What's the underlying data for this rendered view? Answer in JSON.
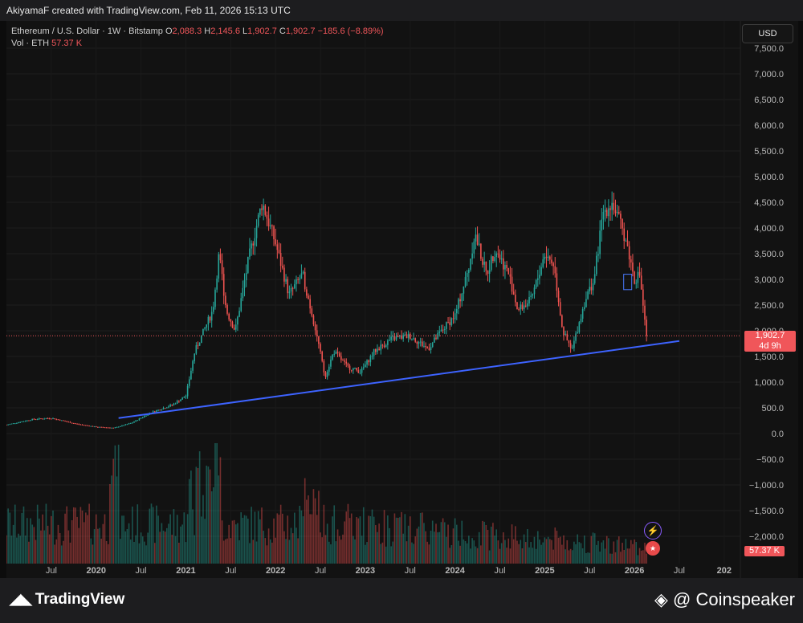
{
  "header": {
    "text": "AkiyamaF created with TradingView.com, Feb 11, 2026 15:13 UTC"
  },
  "legend": {
    "symbol": "Ethereum / U.S. Dollar · 1W · Bitstamp",
    "o_label": "O",
    "o": "2,088.3",
    "h_label": "H",
    "h": "2,145.6",
    "l_label": "L",
    "l": "1,902.7",
    "c_label": "C",
    "c": "1,902.7",
    "change": "−185.6 (−8.89%)",
    "vol_label": "Vol · ETH",
    "vol": "57.37 K"
  },
  "currency_button": "USD",
  "price_tag": {
    "price": "1,902.7",
    "countdown": "4d 9h"
  },
  "volume_tag": "57.37 K",
  "footer": {
    "brand": "TradingView",
    "watermark": "@ Coinspeaker"
  },
  "icons": {
    "bolt": "lightning-icon",
    "flag": "us-flag-icon",
    "tv": "tradingview-logo-icon",
    "cs": "coinspeaker-logo-icon"
  },
  "colors": {
    "up": "#26a69a",
    "down": "#ef5350",
    "trendline": "#3d63ff",
    "price_line": "#f0565a",
    "background": "#121212"
  },
  "chart_data": {
    "type": "candlestick",
    "symbol": "ETHUSD",
    "interval": "1W",
    "ylim": [
      -2000,
      7500
    ],
    "y_ticks": [
      7500,
      7000,
      6500,
      6000,
      5500,
      5000,
      4500,
      4000,
      3500,
      3000,
      2500,
      2000,
      1500,
      1000,
      500,
      0,
      -500,
      -1000,
      -1500,
      -2000
    ],
    "y_tick_labels": [
      "7,500.0",
      "7,000.0",
      "6,500.0",
      "6,000.0",
      "5,500.0",
      "5,000.0",
      "4,500.0",
      "4,000.0",
      "3,500.0",
      "3,000.0",
      "2,500.0",
      "2,000.0",
      "1,500.0",
      "1,000.0",
      "500.0",
      "0.0",
      "−500.0",
      "−1,000.0",
      "−1,500.0",
      "−2,000.0"
    ],
    "x_ticks": [
      {
        "label": "Jul",
        "t": 2019.5
      },
      {
        "label": "2020",
        "t": 2020.0
      },
      {
        "label": "Jul",
        "t": 2020.5
      },
      {
        "label": "2021",
        "t": 2021.0
      },
      {
        "label": "Jul",
        "t": 2021.5
      },
      {
        "label": "2022",
        "t": 2022.0
      },
      {
        "label": "Jul",
        "t": 2022.5
      },
      {
        "label": "2023",
        "t": 2023.0
      },
      {
        "label": "Jul",
        "t": 2023.5
      },
      {
        "label": "2024",
        "t": 2024.0
      },
      {
        "label": "Jul",
        "t": 2024.5
      },
      {
        "label": "2025",
        "t": 2025.0
      },
      {
        "label": "Jul",
        "t": 2025.5
      },
      {
        "label": "2026",
        "t": 2026.0
      },
      {
        "label": "Jul",
        "t": 2026.5
      },
      {
        "label": "202",
        "t": 2027.0
      }
    ],
    "x_range": [
      2019.0,
      2027.1
    ],
    "price_keypoints": [
      [
        2019.0,
        170
      ],
      [
        2019.3,
        280
      ],
      [
        2019.5,
        300
      ],
      [
        2019.8,
        180
      ],
      [
        2020.0,
        130
      ],
      [
        2020.2,
        110
      ],
      [
        2020.4,
        210
      ],
      [
        2020.6,
        400
      ],
      [
        2020.85,
        560
      ],
      [
        2021.0,
        730
      ],
      [
        2021.1,
        1600
      ],
      [
        2021.3,
        2400
      ],
      [
        2021.37,
        3500
      ],
      [
        2021.45,
        2400
      ],
      [
        2021.55,
        2000
      ],
      [
        2021.7,
        3400
      ],
      [
        2021.85,
        4500
      ],
      [
        2022.0,
        3700
      ],
      [
        2022.15,
        2700
      ],
      [
        2022.3,
        3100
      ],
      [
        2022.45,
        2000
      ],
      [
        2022.55,
        1100
      ],
      [
        2022.65,
        1600
      ],
      [
        2022.8,
        1300
      ],
      [
        2022.95,
        1200
      ],
      [
        2023.1,
        1600
      ],
      [
        2023.3,
        1850
      ],
      [
        2023.5,
        1900
      ],
      [
        2023.7,
        1650
      ],
      [
        2023.85,
        2000
      ],
      [
        2024.0,
        2300
      ],
      [
        2024.15,
        3200
      ],
      [
        2024.22,
        3900
      ],
      [
        2024.35,
        3100
      ],
      [
        2024.45,
        3600
      ],
      [
        2024.6,
        3100
      ],
      [
        2024.7,
        2400
      ],
      [
        2024.85,
        2600
      ],
      [
        2025.0,
        3500
      ],
      [
        2025.1,
        3300
      ],
      [
        2025.2,
        2000
      ],
      [
        2025.3,
        1600
      ],
      [
        2025.45,
        2600
      ],
      [
        2025.55,
        3000
      ],
      [
        2025.65,
        4300
      ],
      [
        2025.75,
        4500
      ],
      [
        2025.9,
        3800
      ],
      [
        2026.0,
        3000
      ],
      [
        2026.06,
        3100
      ],
      [
        2026.12,
        2100
      ],
      [
        2026.14,
        1903
      ]
    ],
    "last_price": 1902.7,
    "trendline": {
      "start": [
        2020.25,
        300
      ],
      "end": [
        2026.5,
        1800
      ]
    },
    "volume_max": 100000
  }
}
